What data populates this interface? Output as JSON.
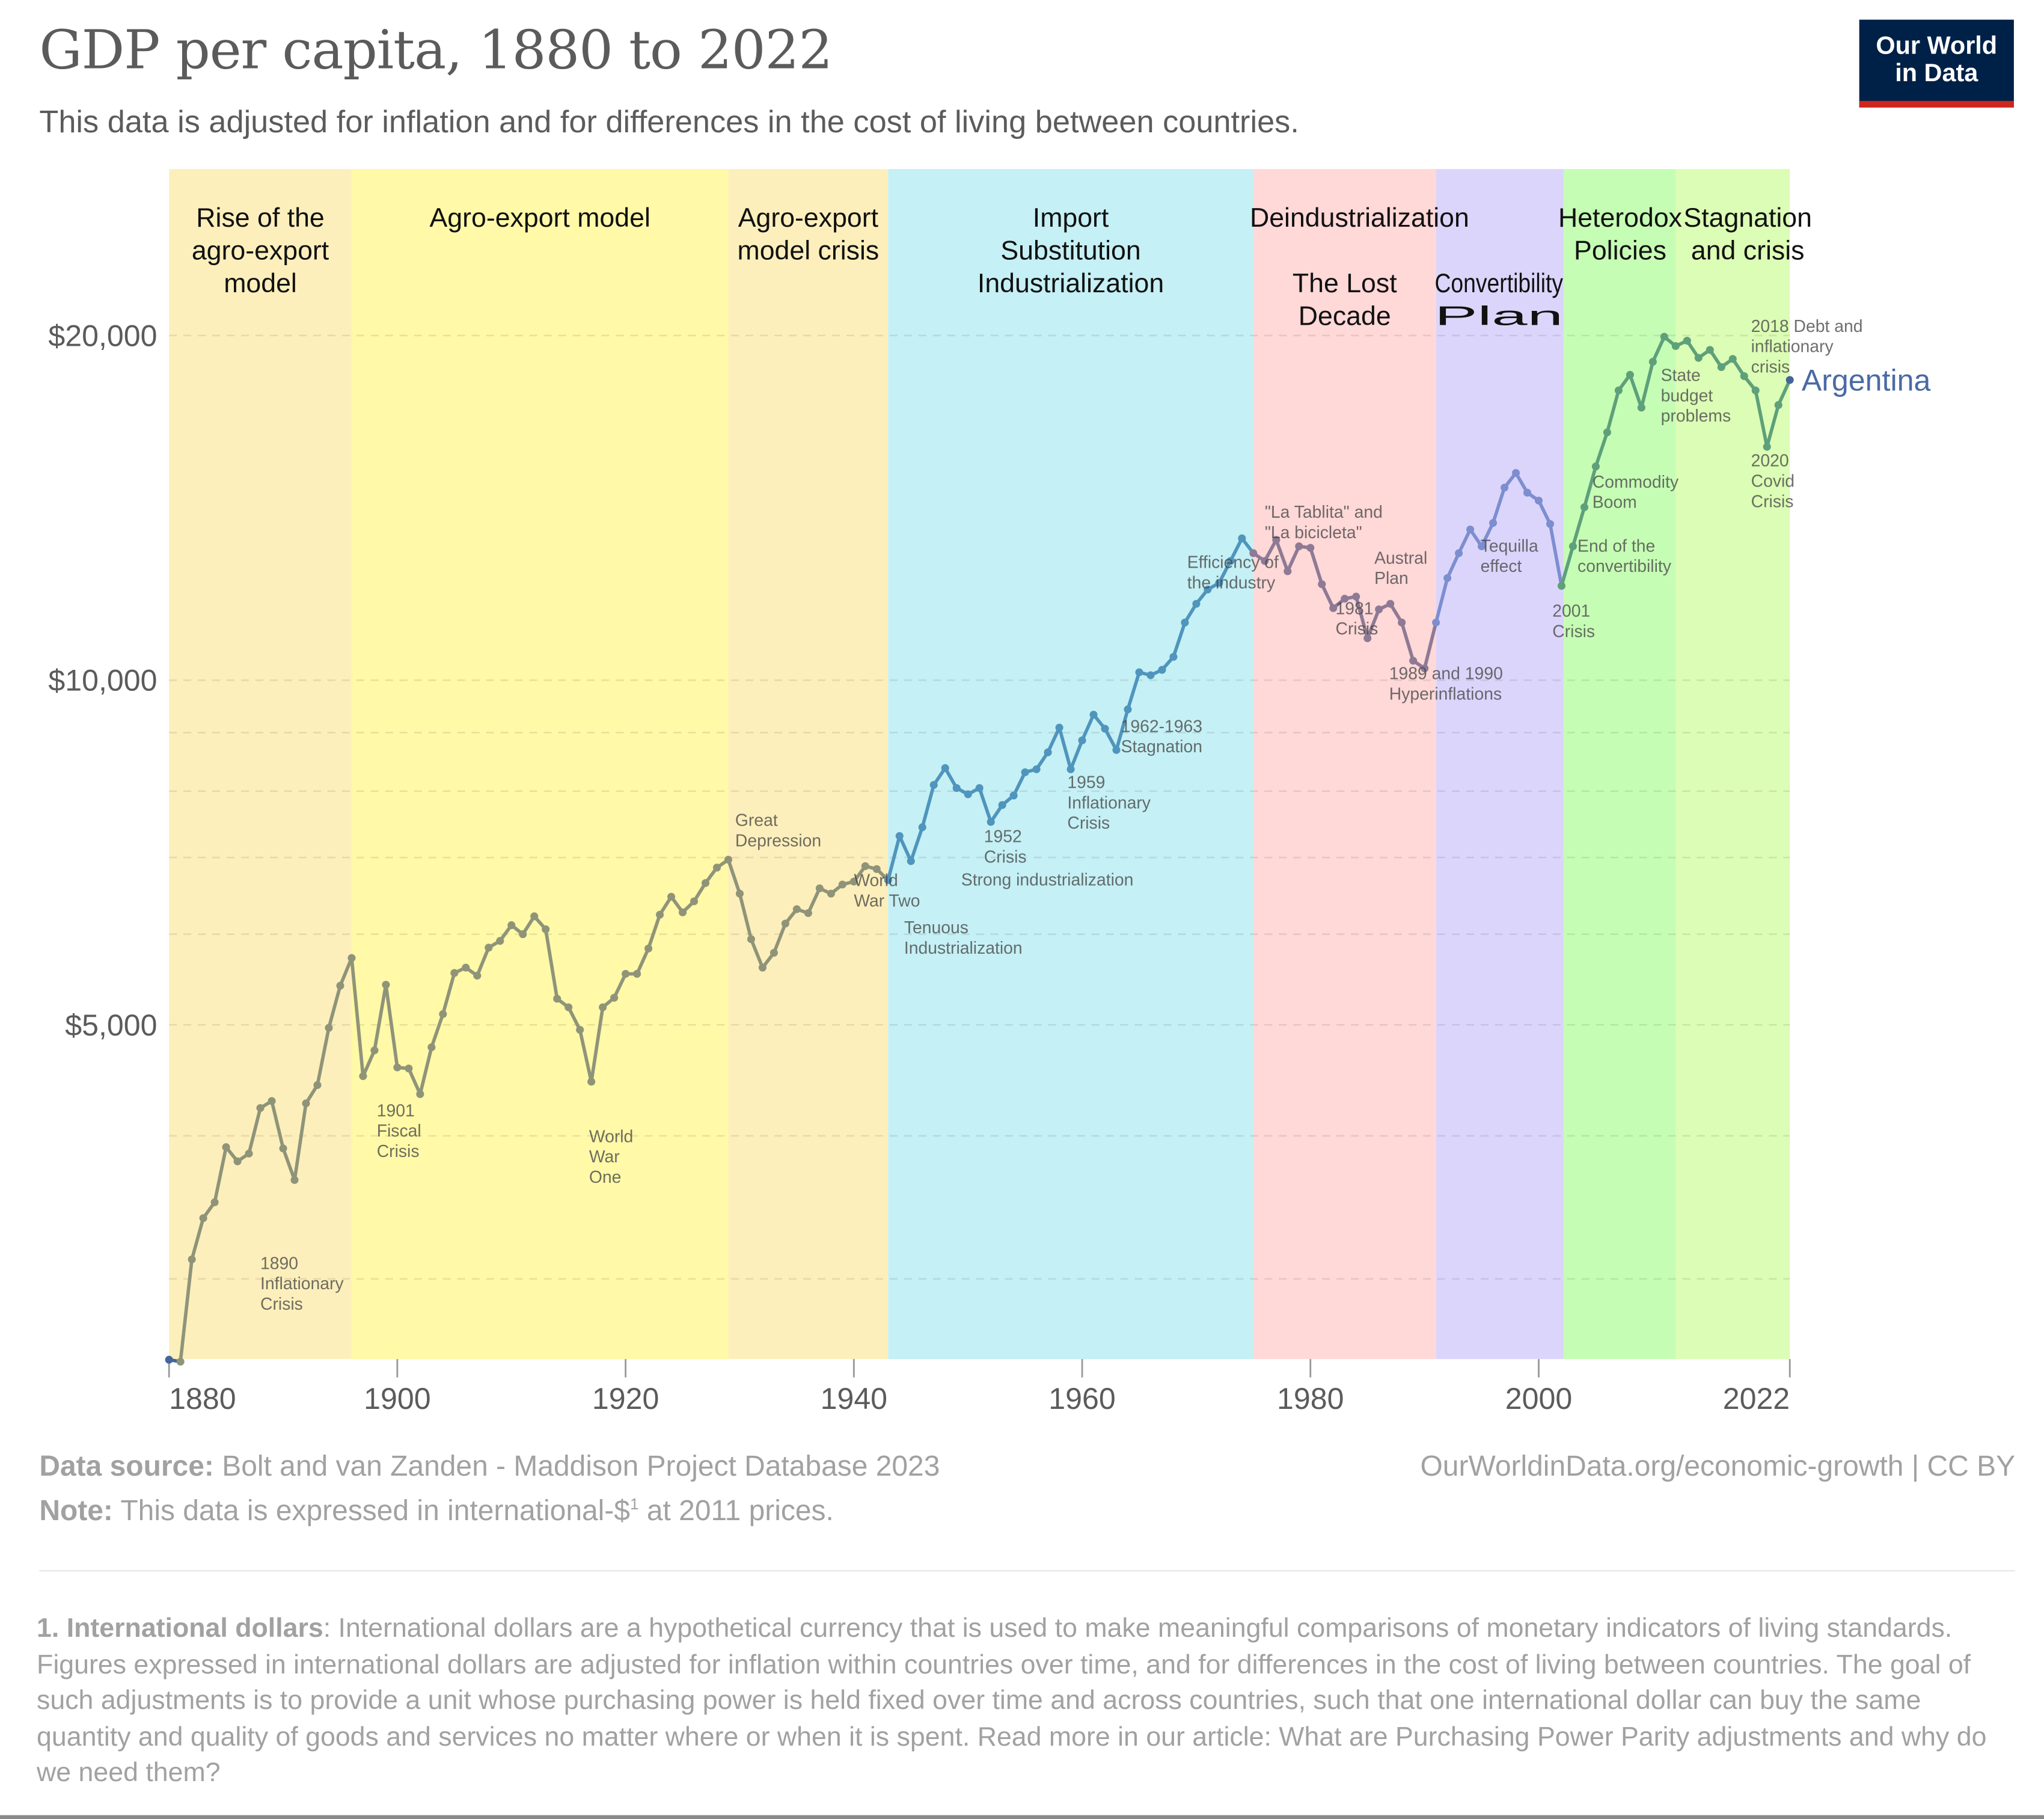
{
  "header": {
    "title": "GDP per capita, 1880 to 2022",
    "subtitle": "This data is adjusted for inflation and for differences in the cost of living between countries.",
    "logo_line1": "Our World",
    "logo_line2": "in Data"
  },
  "colors": {
    "logo_bg": "#002147",
    "logo_accent": "#ce261e",
    "series_label": "#4a6aa5"
  },
  "chart_data": {
    "type": "line",
    "title": "GDP per capita, 1880 to 2022",
    "subtitle": "This data is adjusted for inflation and for differences in the cost of living between countries.",
    "xlabel": "",
    "ylabel": "",
    "y_scale": "log",
    "xlim": [
      1880,
      2022
    ],
    "ylim": [
      2540,
      20000
    ],
    "grid": true,
    "x_ticks": [
      1880,
      1900,
      1920,
      1940,
      1960,
      1980,
      2000,
      2022
    ],
    "x_tick_labels": [
      "1880",
      "1900",
      "1920",
      "1940",
      "1960",
      "1980",
      "2000",
      "2022"
    ],
    "y_ticks_labeled": [
      5000,
      10000,
      20000
    ],
    "y_tick_labels": [
      "$5,000",
      "$10,000",
      "$20,000"
    ],
    "y_minor_gridlines": [
      3000,
      4000,
      6000,
      7000,
      8000,
      9000
    ],
    "legend_placement": "right-end label",
    "series": [
      {
        "name": "Argentina",
        "start_year": 1880,
        "values": [
          2550,
          2540,
          3120,
          3390,
          3500,
          3910,
          3800,
          3860,
          4230,
          4290,
          3900,
          3660,
          4270,
          4430,
          4970,
          5410,
          5720,
          4510,
          4750,
          5420,
          4590,
          4580,
          4350,
          4780,
          5110,
          5550,
          5610,
          5520,
          5840,
          5920,
          6110,
          6000,
          6220,
          6060,
          5270,
          5180,
          4950,
          4460,
          5180,
          5280,
          5540,
          5540,
          5830,
          6240,
          6470,
          6270,
          6410,
          6650,
          6860,
          6970,
          6510,
          5940,
          5610,
          5780,
          6130,
          6310,
          6260,
          6580,
          6510,
          6630,
          6670,
          6880,
          6840,
          6690,
          7310,
          6950,
          7440,
          8100,
          8380,
          8050,
          7950,
          8050,
          7520,
          7780,
          7930,
          8310,
          8360,
          8650,
          9090,
          8360,
          8860,
          9330,
          9070,
          8690,
          9430,
          10160,
          10100,
          10210,
          10480,
          11230,
          11660,
          12000,
          12160,
          12710,
          13300,
          12910,
          12710,
          13260,
          12450,
          13090,
          13050,
          12130,
          11560,
          11780,
          11830,
          10880,
          11530,
          11660,
          11230,
          10400,
          10240,
          11230,
          12280,
          12910,
          13540,
          13090,
          13720,
          14730,
          15170,
          14580,
          14350,
          13690,
          12090,
          13090,
          14160,
          15370,
          16460,
          17910,
          18480,
          17300,
          18970,
          19950,
          19580,
          19790,
          19120,
          19430,
          18770,
          19080,
          18430,
          17910,
          15990,
          17390,
          18290
        ]
      }
    ],
    "segments": [
      {
        "from": 1880,
        "to": 1881,
        "color": "#44659c"
      },
      {
        "from": 1881,
        "to": 1943,
        "color": "#8f9479"
      },
      {
        "from": 1943,
        "to": 1975,
        "color": "#4f95bd"
      },
      {
        "from": 1975,
        "to": 1991,
        "color": "#8e7a94"
      },
      {
        "from": 1991,
        "to": 2002,
        "color": "#7d8ed0"
      },
      {
        "from": 2002,
        "to": 2022,
        "color": "#5ea07a"
      }
    ],
    "periods": [
      {
        "start": 1880,
        "end": 1896,
        "color": "#fdefbb",
        "label": [
          "Rise of the",
          "agro-export",
          "model"
        ]
      },
      {
        "start": 1896,
        "end": 1929,
        "color": "#fff9a8",
        "label": [
          "Agro-export model"
        ]
      },
      {
        "start": 1929,
        "end": 1943,
        "color": "#fdefbb",
        "label": [
          "Agro-export",
          "model crisis"
        ]
      },
      {
        "start": 1943,
        "end": 1975,
        "color": "#c5f0f5",
        "label": [
          "Import",
          "Substitution",
          "Industrialization"
        ]
      },
      {
        "start": 1975,
        "end": 1991,
        "color": "#ffd8d8",
        "label": [
          "The Lost",
          "Decade"
        ]
      },
      {
        "start": 1991,
        "end": 2002.2,
        "color": "#dcd5fb",
        "label": [
          "Convertibility",
          "Plan"
        ]
      },
      {
        "start": 2002.2,
        "end": 2012,
        "color": "#c6fdb5",
        "label": [
          "Heterodox",
          "Policies"
        ]
      },
      {
        "start": 2012,
        "end": 2022,
        "color": "#dcfdb5",
        "label": [
          "Stagnation",
          "and crisis"
        ]
      }
    ],
    "era_labels": [
      {
        "text": "Deindustrialization",
        "year": 1984
      }
    ],
    "annotations": [
      {
        "year": 1888.0,
        "value": 3060,
        "lines": [
          "1890",
          "Inflationary",
          "Crisis"
        ]
      },
      {
        "year": 1898.2,
        "value": 4160,
        "lines": [
          "1901",
          "Fiscal",
          "Crisis"
        ]
      },
      {
        "year": 1916.8,
        "value": 3950,
        "lines": [
          "World",
          "War",
          "One"
        ]
      },
      {
        "year": 1929.6,
        "value": 7460,
        "lines": [
          "Great",
          "Depression"
        ]
      },
      {
        "year": 1940.0,
        "value": 6610,
        "lines": [
          "World",
          "War Two"
        ]
      },
      {
        "year": 1944.4,
        "value": 6010,
        "lines": [
          "Tenuous",
          "Industrialization"
        ]
      },
      {
        "year": 1949.4,
        "value": 6620,
        "lines": [
          "Strong industrialization"
        ]
      },
      {
        "year": 1951.4,
        "value": 7220,
        "lines": [
          "1952",
          "Crisis"
        ]
      },
      {
        "year": 1958.7,
        "value": 8050,
        "lines": [
          "1959",
          "Inflationary",
          "Crisis"
        ]
      },
      {
        "year": 1963.4,
        "value": 9010,
        "lines": [
          "1962-1963",
          "Stagnation"
        ]
      },
      {
        "year": 1969.2,
        "value": 12530,
        "lines": [
          "Efficiency of",
          "the industry"
        ]
      },
      {
        "year": 1976.0,
        "value": 13860,
        "lines": [
          "\"La Tablita\" and",
          "\"La bicicleta\""
        ]
      },
      {
        "year": 1982.2,
        "value": 11420,
        "lines": [
          "1981",
          "Crisis"
        ]
      },
      {
        "year": 1985.6,
        "value": 12640,
        "lines": [
          "Austral",
          "Plan"
        ]
      },
      {
        "year": 1986.9,
        "value": 10020,
        "lines": [
          "1989 and 1990",
          "Hyperinflations"
        ]
      },
      {
        "year": 1994.9,
        "value": 12950,
        "lines": [
          "Tequilla",
          "effect"
        ]
      },
      {
        "year": 2001.2,
        "value": 11360,
        "lines": [
          "2001",
          "Crisis"
        ]
      },
      {
        "year": 2003.4,
        "value": 12950,
        "lines": [
          "End of the",
          "convertibility"
        ]
      },
      {
        "year": 2004.7,
        "value": 14730,
        "lines": [
          "Commodity",
          "Boom"
        ]
      },
      {
        "year": 2010.7,
        "value": 18250,
        "lines": [
          "State",
          "budget",
          "problems"
        ]
      },
      {
        "year": 2018.6,
        "value": 20150,
        "lines": [
          "2018 Debt and",
          "inflationary",
          "crisis"
        ]
      },
      {
        "year": 2018.6,
        "value": 15370,
        "lines": [
          "2020",
          "Covid",
          "Crisis"
        ]
      }
    ]
  },
  "footer": {
    "source_label": "Data source:",
    "source_text": "Bolt and van Zanden - Maddison Project Database 2023",
    "url_text": "OurWorldinData.org/economic-growth | CC BY",
    "note_label": "Note:",
    "note_text_before": "This data is expressed in international-$",
    "note_sup": "1",
    "note_text_after": " at 2011 prices."
  },
  "footnote": {
    "label": "1. International dollars",
    "text": ": International dollars are a hypothetical currency that is used to make meaningful comparisons of monetary indicators of living standards. Figures expressed in international dollars are adjusted for inflation within countries over time, and for differences in the cost of living between countries. The goal of such adjustments is to provide a unit whose purchasing power is held fixed over time and across countries, such that one international dollar can buy the same quantity and quality of goods and services no matter where or when it is spent. Read more in our article: What are Purchasing Power Parity adjustments and why do we need them?"
  }
}
